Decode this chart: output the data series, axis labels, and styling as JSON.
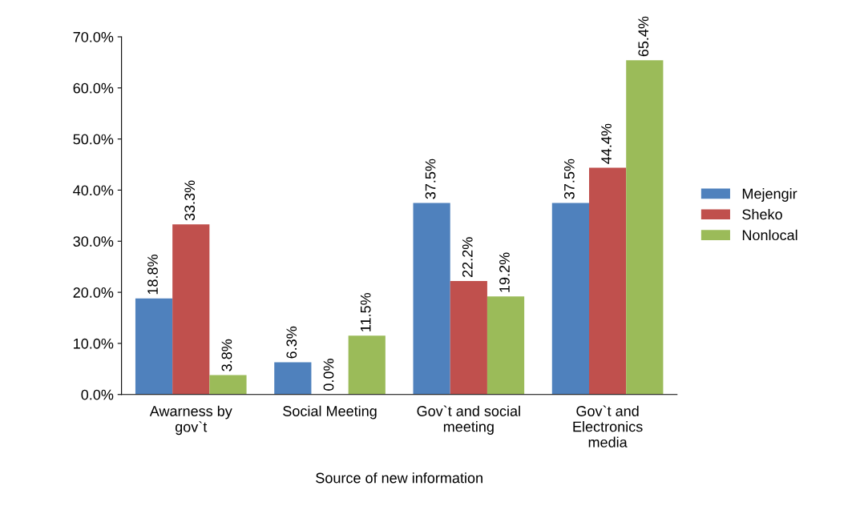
{
  "chart_data": {
    "type": "bar",
    "xlabel": "Source of new information",
    "categories": [
      "Awarness by gov`t",
      "Social Meeting",
      "Gov`t and social meeting",
      "Gov`t and Electronics media"
    ],
    "series": [
      {
        "name": "Mejengir",
        "color": "#4f81bd",
        "values": [
          18.8,
          6.3,
          37.5,
          37.5
        ],
        "value_labels": [
          "18.8%",
          "6.3%",
          "37.5%",
          "37.5%"
        ]
      },
      {
        "name": "Sheko",
        "color": "#c0504d",
        "values": [
          33.3,
          0.0,
          22.2,
          44.4
        ],
        "value_labels": [
          "33.3%",
          "0.0%",
          "22.2%",
          "44.4%"
        ]
      },
      {
        "name": "Nonlocal",
        "color": "#9bbb59",
        "values": [
          3.8,
          11.5,
          19.2,
          65.4
        ],
        "value_labels": [
          "3.8%",
          "11.5%",
          "19.2%",
          "65.4%"
        ]
      }
    ],
    "ylim": [
      0,
      70
    ],
    "yticks": [
      {
        "value": 0,
        "label": "0.0%"
      },
      {
        "value": 10,
        "label": "10.0%"
      },
      {
        "value": 20,
        "label": "20.0%"
      },
      {
        "value": 30,
        "label": "30.0%"
      },
      {
        "value": 40,
        "label": "40.0%"
      },
      {
        "value": 50,
        "label": "50.0%"
      },
      {
        "value": 60,
        "label": "60.0%"
      },
      {
        "value": 70,
        "label": "70.0%"
      }
    ],
    "grid": false,
    "legend": "right"
  }
}
